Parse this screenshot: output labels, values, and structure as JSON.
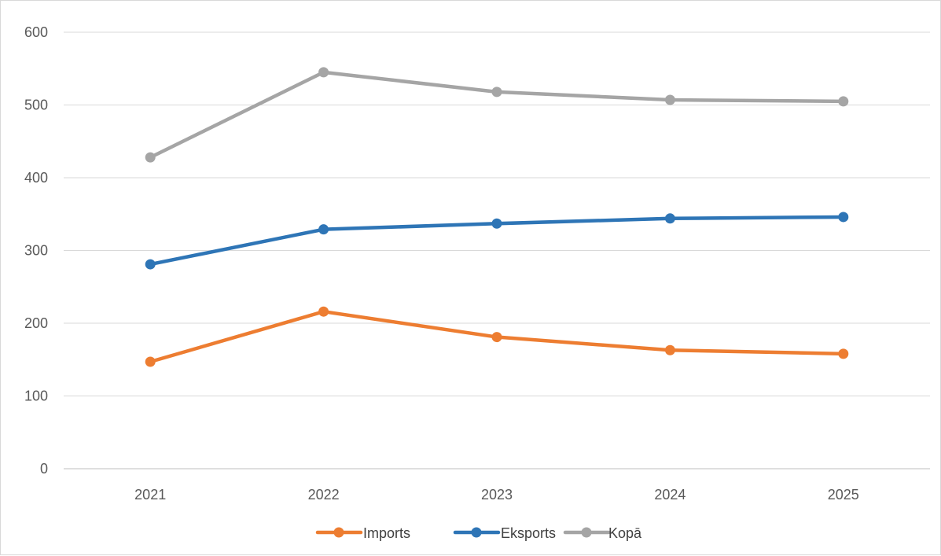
{
  "chart_data": {
    "type": "line",
    "title": "",
    "xlabel": "",
    "ylabel": "",
    "categories": [
      "2021",
      "2022",
      "2023",
      "2024",
      "2025"
    ],
    "ylim": [
      0,
      600
    ],
    "yticks": [
      "0",
      "100",
      "200",
      "300",
      "400",
      "500",
      "600"
    ],
    "grid": "horizontal",
    "legend": "bottom-center",
    "series": [
      {
        "name": "Imports",
        "color": "#ED7D31",
        "values": [
          147,
          216,
          181,
          163,
          158
        ]
      },
      {
        "name": "Eksports",
        "color": "#2E75B6",
        "values": [
          281,
          329,
          337,
          344,
          346
        ]
      },
      {
        "name": "Kopā",
        "color": "#A5A5A5",
        "values": [
          428,
          545,
          518,
          507,
          505
        ]
      }
    ]
  }
}
